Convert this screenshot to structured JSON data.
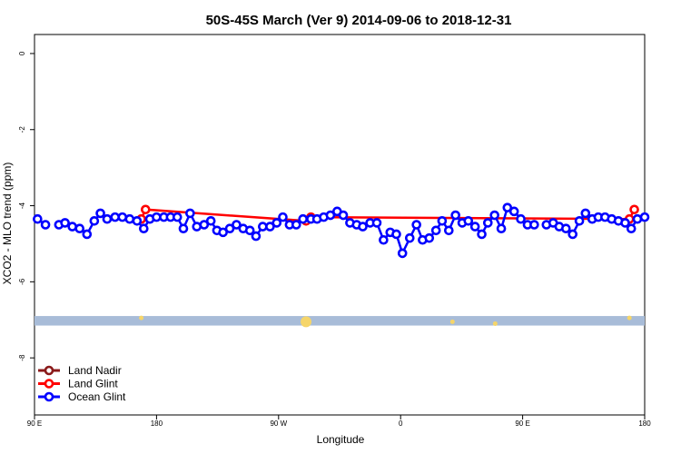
{
  "chart_data": {
    "type": "line",
    "title": "50S-45S March (Ver 9)   2014-09-06 to 2018-12-31",
    "xlabel": "Longitude",
    "ylabel": "XCO2 - MLO trend (ppm)",
    "xlim": [
      0,
      100
    ],
    "ylim": [
      -9.5,
      0.5
    ],
    "x_ticks": [
      {
        "x": 0,
        "label": "90 E"
      },
      {
        "x": 20,
        "label": "180"
      },
      {
        "x": 40,
        "label": "90 W"
      },
      {
        "x": 60,
        "label": "0"
      },
      {
        "x": 80,
        "label": "90 E"
      },
      {
        "x": 100,
        "label": "180"
      }
    ],
    "y_ticks": [
      0,
      -2,
      -4,
      -6,
      -8
    ],
    "grid": false,
    "legend_position": "bottom-left",
    "band": {
      "y_min": -7.15,
      "y_max": -6.9,
      "color": "#a8bcd8"
    },
    "land_markers": [
      {
        "x": 17.5,
        "y": -6.95
      },
      {
        "x": 44.5,
        "y": -7.05
      },
      {
        "x": 68.5,
        "y": -7.05
      },
      {
        "x": 75.5,
        "y": -7.1
      },
      {
        "x": 97.5,
        "y": -6.95
      }
    ],
    "marker_color": "#f5d56a",
    "series": [
      {
        "name": "Land Nadir",
        "color": "#8b1a1a",
        "x": [],
        "y": []
      },
      {
        "name": "Land Glint",
        "color": "#ff0000",
        "x": [
          17.5,
          18.2,
          44.5,
          45.3,
          97.5,
          98.3
        ],
        "y": [
          -4.35,
          -4.1,
          -4.4,
          -4.3,
          -4.35,
          -4.1
        ]
      },
      {
        "name": "Ocean Glint",
        "color": "#0000ff",
        "segments": [
          {
            "x": [
              0.5,
              1.8
            ],
            "y": [
              -4.35,
              -4.5
            ]
          },
          {
            "x": [
              4.0,
              5.0,
              6.2,
              7.4,
              8.6,
              9.8,
              10.8,
              11.9,
              13.2,
              14.4,
              15.6,
              16.8,
              17.9,
              18.9,
              20.0,
              21.2,
              22.3,
              23.4,
              24.4,
              25.5,
              26.6,
              27.8,
              28.9,
              29.9,
              30.9,
              32.0,
              33.1,
              34.2,
              35.3,
              36.3,
              37.4,
              38.6,
              39.7,
              40.7,
              41.8,
              42.9,
              44.0,
              45.3,
              46.3,
              47.4,
              48.5,
              49.6,
              50.6,
              51.7,
              52.8,
              53.8,
              55.0,
              56.1,
              57.2,
              58.3,
              59.3,
              60.3,
              61.5,
              62.6,
              63.6,
              64.7,
              65.8,
              66.8,
              67.9,
              69.0,
              70.1,
              71.1,
              72.2,
              73.3,
              74.3,
              75.4,
              76.5,
              77.5,
              78.6,
              79.7,
              80.8,
              81.9
            ],
            "y": [
              -4.5,
              -4.45,
              -4.55,
              -4.6,
              -4.75,
              -4.4,
              -4.2,
              -4.35,
              -4.3,
              -4.3,
              -4.35,
              -4.4,
              -4.6,
              -4.35,
              -4.3,
              -4.3,
              -4.3,
              -4.3,
              -4.6,
              -4.2,
              -4.55,
              -4.5,
              -4.4,
              -4.65,
              -4.7,
              -4.6,
              -4.5,
              -4.6,
              -4.65,
              -4.8,
              -4.55,
              -4.55,
              -4.45,
              -4.3,
              -4.5,
              -4.5,
              -4.35,
              -4.35,
              -4.35,
              -4.3,
              -4.25,
              -4.15,
              -4.25,
              -4.45,
              -4.5,
              -4.55,
              -4.45,
              -4.45,
              -4.9,
              -4.7,
              -4.75,
              -5.25,
              -4.85,
              -4.5,
              -4.9,
              -4.85,
              -4.65,
              -4.4,
              -4.65,
              -4.25,
              -4.45,
              -4.4,
              -4.55,
              -4.75,
              -4.45,
              -4.25,
              -4.6,
              -4.05,
              -4.15,
              -4.35,
              -4.5,
              -4.5
            ]
          },
          {
            "x": [
              83.9,
              85.0,
              86.0,
              87.1,
              88.2,
              89.3,
              90.3,
              91.4,
              92.4,
              93.5,
              94.6,
              95.7,
              96.8,
              97.8,
              98.8,
              100.0
            ],
            "y": [
              -4.5,
              -4.45,
              -4.55,
              -4.6,
              -4.75,
              -4.4,
              -4.2,
              -4.35,
              -4.3,
              -4.3,
              -4.35,
              -4.4,
              -4.45,
              -4.6,
              -4.35,
              -4.3
            ]
          }
        ]
      }
    ]
  }
}
